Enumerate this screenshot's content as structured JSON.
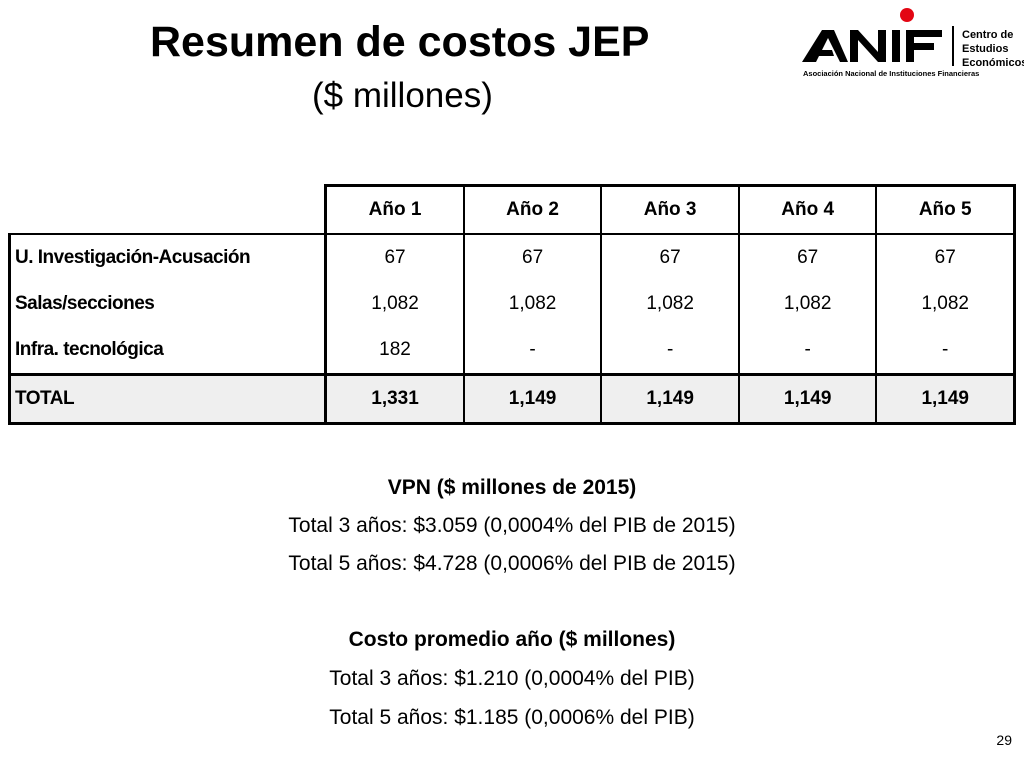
{
  "title": "Resumen de costos JEP",
  "subtitle": "($ millones)",
  "logo": {
    "brand": "ANIF",
    "text_lines": [
      "Centro de",
      "Estudios",
      "Económicos"
    ],
    "tagline": "Asociación Nacional de Instituciones Financieras",
    "accent_color": "#e30613"
  },
  "table": {
    "headers": [
      "Año 1",
      "Año 2",
      "Año 3",
      "Año 4",
      "Año 5"
    ],
    "rows": [
      {
        "label": "U. Investigación-Acusación",
        "values": [
          "67",
          "67",
          "67",
          "67",
          "67"
        ]
      },
      {
        "label": "Salas/secciones",
        "values": [
          "1,082",
          "1,082",
          "1,082",
          "1,082",
          "1,082"
        ]
      },
      {
        "label": "Infra. tecnológica",
        "values": [
          "182",
          "-",
          "-",
          "-",
          "-"
        ]
      }
    ],
    "total": {
      "label": "TOTAL",
      "values": [
        "1,331",
        "1,149",
        "1,149",
        "1,149",
        "1,149"
      ]
    }
  },
  "summary": {
    "vpn_title": "VPN ($ millones de 2015)",
    "vpn_3": "Total 3 años: $3.059 (0,0004% del PIB de 2015)",
    "vpn_5": "Total 5 años: $4.728 (0,0006% del PIB de 2015)",
    "avg_title": "Costo promedio año ($ millones)",
    "avg_3": "Total 3 años: $1.210 (0,0004% del PIB)",
    "avg_5": "Total 5 años: $1.185 (0,0006% del PIB)"
  },
  "page_number": "29"
}
